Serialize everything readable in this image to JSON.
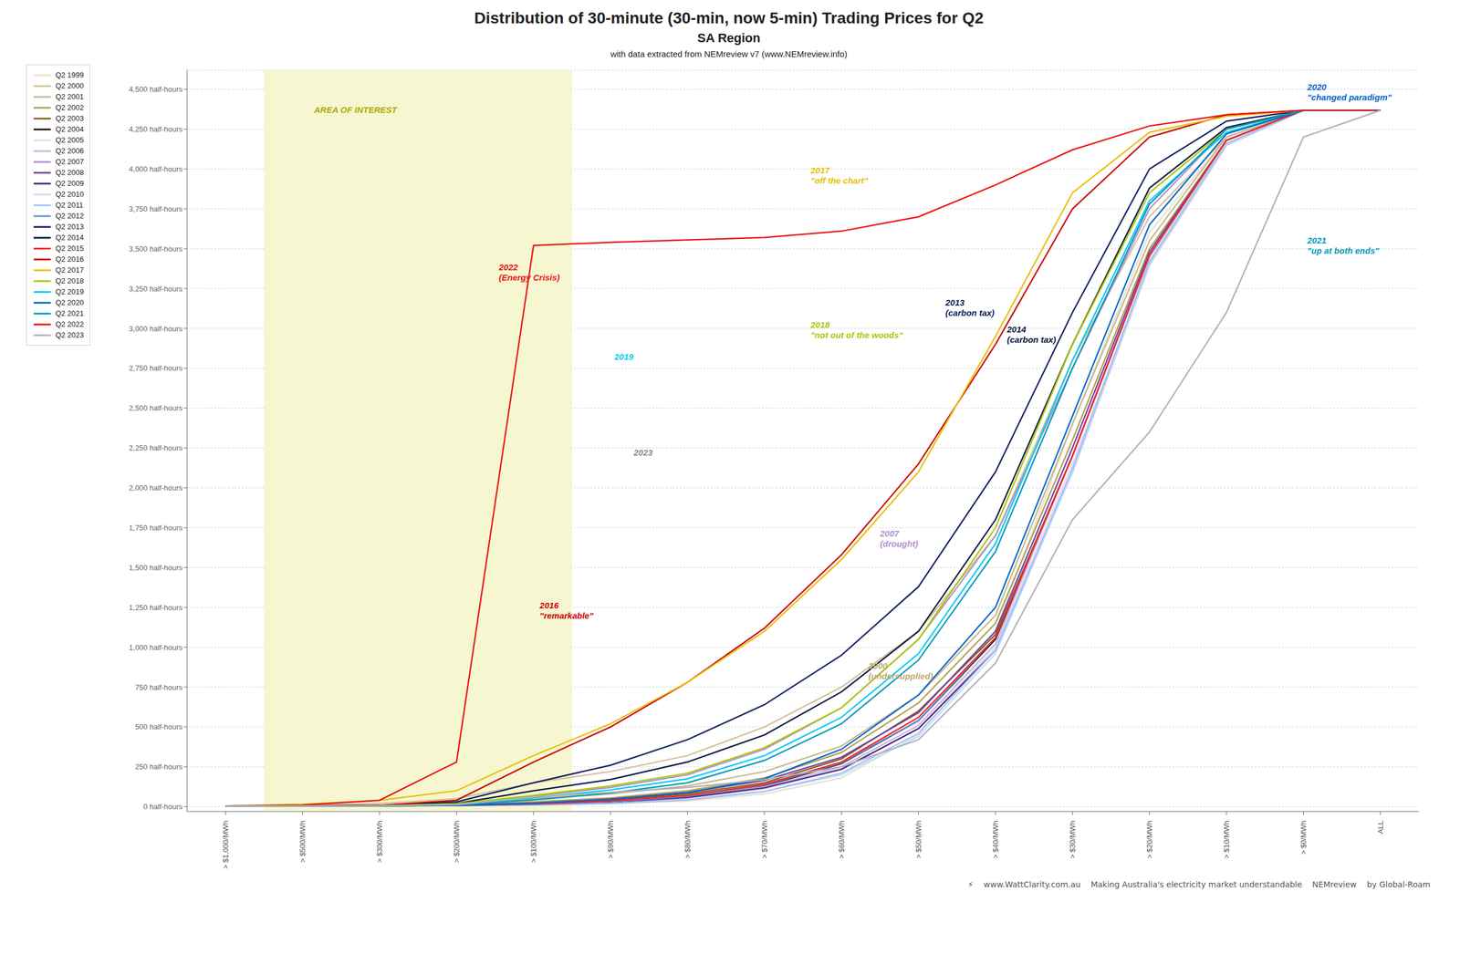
{
  "chart_data": {
    "type": "line",
    "title": "Distribution of 30-minute (30-min, now 5-min) Trading Prices for Q2",
    "subtitle": [
      "SA Region",
      "with data extracted from NEMreview v7 (www.NEMreview.info)"
    ],
    "categories": [
      "> $1,000/MWh",
      "> $500/MWh",
      "> $300/MWh",
      "> $200/MWh",
      "> $100/MWh",
      "> $90/MWh",
      "> $80/MWh",
      "> $70/MWh",
      "> $60/MWh",
      "> $50/MWh",
      "> $40/MWh",
      "> $30/MWh",
      "> $20/MWh",
      "> $10/MWh",
      "> $0/MWh",
      "ALL"
    ],
    "series": [
      {
        "name": "Q2 1999",
        "color": "#e8e0d0",
        "values": [
          5,
          5,
          5,
          8,
          12,
          20,
          35,
          80,
          180,
          450,
          1100,
          2400,
          3600,
          4200,
          4368,
          4368
        ]
      },
      {
        "name": "Q2 2000",
        "color": "#d4c098",
        "values": [
          5,
          10,
          20,
          50,
          150,
          220,
          320,
          500,
          750,
          1100,
          1700,
          2800,
          3700,
          4200,
          4368,
          4368
        ]
      },
      {
        "name": "Q2 2001",
        "color": "#c8b888",
        "values": [
          5,
          5,
          8,
          15,
          50,
          80,
          130,
          220,
          380,
          700,
          1200,
          2400,
          3550,
          4200,
          4368,
          4368
        ]
      },
      {
        "name": "Q2 2002",
        "color": "#b0a050",
        "values": [
          5,
          5,
          6,
          10,
          30,
          55,
          100,
          180,
          340,
          650,
          1150,
          2300,
          3500,
          4180,
          4368,
          4368
        ]
      },
      {
        "name": "Q2 2003",
        "color": "#806020",
        "values": [
          5,
          5,
          5,
          8,
          20,
          40,
          80,
          150,
          300,
          600,
          1080,
          2200,
          3450,
          4180,
          4368,
          4368
        ]
      },
      {
        "name": "Q2 2004",
        "color": "#181008",
        "values": [
          5,
          5,
          5,
          8,
          15,
          30,
          65,
          130,
          270,
          540,
          1050,
          2200,
          3450,
          4180,
          4368,
          4368
        ]
      },
      {
        "name": "Q2 2005",
        "color": "#e0d8f0",
        "values": [
          5,
          5,
          5,
          7,
          12,
          22,
          50,
          110,
          230,
          490,
          1000,
          2150,
          3400,
          4150,
          4368,
          4368
        ]
      },
      {
        "name": "Q2 2006",
        "color": "#c8b4e0",
        "values": [
          5,
          5,
          5,
          7,
          14,
          28,
          60,
          125,
          250,
          510,
          1020,
          2200,
          3450,
          4180,
          4368,
          4368
        ]
      },
      {
        "name": "Q2 2007",
        "color": "#b090d0",
        "values": [
          5,
          5,
          8,
          18,
          65,
          120,
          200,
          360,
          620,
          1050,
          1700,
          2750,
          3750,
          4250,
          4368,
          4368
        ]
      },
      {
        "name": "Q2 2008",
        "color": "#7040a0",
        "values": [
          5,
          5,
          5,
          9,
          22,
          48,
          90,
          165,
          310,
          590,
          1100,
          2250,
          3480,
          4180,
          4368,
          4368
        ]
      },
      {
        "name": "Q2 2009",
        "color": "#4a2080",
        "values": [
          5,
          5,
          5,
          7,
          14,
          28,
          58,
          118,
          235,
          490,
          980,
          2100,
          3400,
          4150,
          4368,
          4368
        ]
      },
      {
        "name": "Q2 2010",
        "color": "#c8dcf8",
        "values": [
          5,
          5,
          5,
          7,
          10,
          20,
          42,
          95,
          200,
          440,
          960,
          2100,
          3400,
          4150,
          4368,
          4368
        ]
      },
      {
        "name": "Q2 2011",
        "color": "#a0c0f0",
        "values": [
          5,
          5,
          5,
          7,
          10,
          20,
          42,
          95,
          210,
          460,
          980,
          2120,
          3420,
          4160,
          4368,
          4368
        ]
      },
      {
        "name": "Q2 2012",
        "color": "#6090e0",
        "values": [
          5,
          5,
          5,
          8,
          14,
          30,
          65,
          135,
          275,
          540,
          1060,
          2200,
          3460,
          4180,
          4368,
          4368
        ]
      },
      {
        "name": "Q2 2013",
        "color": "#102060",
        "values": [
          5,
          5,
          8,
          30,
          150,
          260,
          420,
          640,
          950,
          1380,
          2100,
          3100,
          4000,
          4300,
          4368,
          4368
        ]
      },
      {
        "name": "Q2 2014",
        "color": "#0a1840",
        "values": [
          5,
          5,
          6,
          20,
          100,
          170,
          280,
          450,
          720,
          1100,
          1800,
          2900,
          3880,
          4260,
          4368,
          4368
        ]
      },
      {
        "name": "Q2 2015",
        "color": "#ff2020",
        "values": [
          5,
          5,
          5,
          8,
          18,
          35,
          70,
          140,
          280,
          560,
          1060,
          2200,
          3460,
          4180,
          4368,
          4368
        ]
      },
      {
        "name": "Q2 2016",
        "color": "#cc0000",
        "values": [
          5,
          5,
          8,
          40,
          280,
          500,
          780,
          1120,
          1580,
          2150,
          2900,
          3750,
          4200,
          4340,
          4368,
          4368
        ]
      },
      {
        "name": "Q2 2017",
        "color": "#e8c000",
        "values": [
          5,
          15,
          40,
          100,
          320,
          520,
          780,
          1100,
          1550,
          2100,
          2950,
          3850,
          4230,
          4330,
          4368,
          4368
        ]
      },
      {
        "name": "Q2 2018",
        "color": "#a8c800",
        "values": [
          5,
          5,
          6,
          18,
          70,
          130,
          210,
          370,
          620,
          1050,
          1750,
          2900,
          3850,
          4250,
          4368,
          4368
        ]
      },
      {
        "name": "Q2 2019",
        "color": "#00ccee",
        "values": [
          5,
          5,
          5,
          12,
          55,
          105,
          175,
          320,
          560,
          960,
          1650,
          2800,
          3800,
          4230,
          4368,
          4368
        ]
      },
      {
        "name": "Q2 2020",
        "color": "#0066cc",
        "values": [
          5,
          5,
          5,
          8,
          22,
          45,
          88,
          175,
          360,
          700,
          1250,
          2450,
          3650,
          4220,
          4368,
          4368
        ]
      },
      {
        "name": "Q2 2021",
        "color": "#0099bb",
        "values": [
          5,
          5,
          5,
          10,
          42,
          85,
          150,
          290,
          520,
          920,
          1600,
          2750,
          3780,
          4250,
          4368,
          4368
        ]
      },
      {
        "name": "Q2 2022",
        "color": "#ee1111",
        "values": [
          5,
          10,
          40,
          280,
          3520,
          3540,
          3555,
          3570,
          3610,
          3700,
          3900,
          4120,
          4270,
          4340,
          4368,
          4368
        ]
      },
      {
        "name": "Q2 2023",
        "color": "#b0b0b8",
        "values": [
          5,
          5,
          5,
          12,
          60,
          90,
          120,
          170,
          250,
          420,
          900,
          1800,
          2350,
          3100,
          4200,
          4368
        ]
      }
    ],
    "ylim": [
      -30,
      4620
    ],
    "yticks": [
      {
        "value": 0,
        "label": "0 half-hours"
      },
      {
        "value": 250,
        "label": "250 half-hours"
      },
      {
        "value": 500,
        "label": "500 half-hours"
      },
      {
        "value": 750,
        "label": "750 half-hours"
      },
      {
        "value": 1000,
        "label": "1,000 half-hours"
      },
      {
        "value": 1250,
        "label": "1,250 half-hours"
      },
      {
        "value": 1500,
        "label": "1,500 half-hours"
      },
      {
        "value": 1750,
        "label": "1,750 half-hours"
      },
      {
        "value": 2000,
        "label": "2,000 half-hours"
      },
      {
        "value": 2250,
        "label": "2,250 half-hours"
      },
      {
        "value": 2500,
        "label": "2,500 half-hours"
      },
      {
        "value": 2750,
        "label": "2,750 half-hours"
      },
      {
        "value": 3000,
        "label": "3,000 half-hours"
      },
      {
        "value": 3250,
        "label": "3,250 half-hours"
      },
      {
        "value": 3500,
        "label": "3,500 half-hours"
      },
      {
        "value": 3750,
        "label": "3,750 half-hours"
      },
      {
        "value": 4000,
        "label": "4,000 half-hours"
      },
      {
        "value": 4250,
        "label": "4,250 half-hours"
      },
      {
        "value": 4500,
        "label": "4,500 half-hours"
      }
    ],
    "grid": true,
    "legend": "left",
    "annotations": [
      {
        "text": "AREA OF INTEREST",
        "x": 1.15,
        "y": 4370,
        "color": "#aaaa00",
        "span": [
          "> $500/MWh",
          "> $100/MWh"
        ],
        "span_color": "#f5f5cc"
      },
      {
        "text": "2022\n(Energy Crisis)",
        "x": 3.55,
        "y": 3350,
        "color": "#ee1111"
      },
      {
        "text": "2016\n\"remarkable\"",
        "x": 4.08,
        "y": 1230,
        "color": "#cc0000"
      },
      {
        "text": "2019",
        "x": 5.05,
        "y": 2820,
        "color": "#00ccee"
      },
      {
        "text": "2023",
        "x": 5.3,
        "y": 2220,
        "color": "#888898"
      },
      {
        "text": "2017\n\"off the chart\"",
        "x": 7.6,
        "y": 3960,
        "color": "#e8c000"
      },
      {
        "text": "2018\n\"not out of the woods\"",
        "x": 7.6,
        "y": 2990,
        "color": "#a8c800"
      },
      {
        "text": "2013\n(carbon tax)",
        "x": 9.35,
        "y": 3130,
        "color": "#102060"
      },
      {
        "text": "2014\n(carbon tax)",
        "x": 10.15,
        "y": 2960,
        "color": "#0a1840"
      },
      {
        "text": "2007\n(drought)",
        "x": 8.5,
        "y": 1680,
        "color": "#b090d0"
      },
      {
        "text": "2000\n(undersupplied)",
        "x": 8.35,
        "y": 850,
        "color": "#c0a870"
      },
      {
        "text": "2020\n\"changed paradigm\"",
        "x": 14.05,
        "y": 4480,
        "color": "#0066cc"
      },
      {
        "text": "2021\n\"up at both ends\"",
        "x": 14.05,
        "y": 3520,
        "color": "#0099bb"
      },
      {
        "text": "⚡"
      },
      {
        "text": "www.WattClarity.com.au"
      },
      {
        "text": "Making Australia's electricity market understandable"
      },
      {
        "text": "NEMreview"
      },
      {
        "text": "by Global-Roam"
      }
    ]
  }
}
